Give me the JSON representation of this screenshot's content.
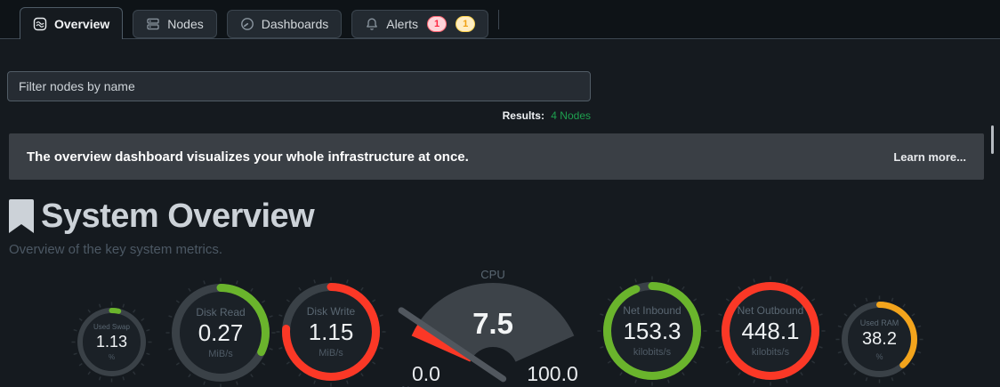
{
  "tabs": [
    {
      "label": "Overview",
      "active": true
    },
    {
      "label": "Nodes",
      "active": false
    },
    {
      "label": "Dashboards",
      "active": false
    },
    {
      "label": "Alerts",
      "active": false,
      "badges": [
        {
          "count": "1",
          "type": "critical"
        },
        {
          "count": "1",
          "type": "warning"
        }
      ]
    }
  ],
  "filter": {
    "placeholder": "Filter nodes by name"
  },
  "results": {
    "label": "Results:",
    "value": "4 Nodes"
  },
  "banner": {
    "message": "The overview dashboard visualizes your whole infrastructure at once.",
    "link": "Learn more..."
  },
  "section": {
    "title": "System Overview",
    "subtitle": "Overview of the key system metrics."
  },
  "colors": {
    "green": "#6ab42c",
    "red": "#fb3826",
    "orange": "#f3a41c"
  },
  "chart_data": [
    {
      "type": "gauge-ring",
      "id": "used-swap",
      "title": "Used Swap",
      "value": "1.13",
      "units": "%",
      "percent": 3.5,
      "color": "green",
      "diameter": 77
    },
    {
      "type": "gauge-ring",
      "id": "disk-read",
      "title": "Disk Read",
      "value": "0.27",
      "units": "MiB/s",
      "percent": 32,
      "color": "green",
      "diameter": 110
    },
    {
      "type": "gauge-ring",
      "id": "disk-write",
      "title": "Disk Write",
      "value": "1.15",
      "units": "MiB/s",
      "percent": 76,
      "color": "red",
      "diameter": 110
    },
    {
      "type": "gauge-meter",
      "id": "cpu",
      "title": "CPU",
      "value": "7.5",
      "units": "%",
      "percent": 7.5,
      "color": "red",
      "min": "0.0",
      "max": "100.0"
    },
    {
      "type": "gauge-ring",
      "id": "net-inbound",
      "title": "Net Inbound",
      "value": "153.3",
      "units": "kilobits/s",
      "percent": 94,
      "color": "green",
      "diameter": 110
    },
    {
      "type": "gauge-ring",
      "id": "net-outbound",
      "title": "Net Outbound",
      "value": "448.1",
      "units": "kilobits/s",
      "percent": 100,
      "color": "red",
      "diameter": 110
    },
    {
      "type": "gauge-ring",
      "id": "used-ram",
      "title": "Used RAM",
      "value": "38.2",
      "units": "%",
      "percent": 38.2,
      "color": "orange",
      "diameter": 85
    }
  ]
}
